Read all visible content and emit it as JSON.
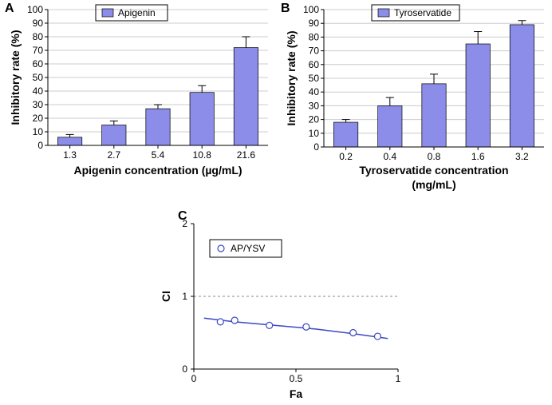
{
  "panelA": {
    "label": "A",
    "type": "bar",
    "legend_label": "Apigenin",
    "x_label": "Apigenin concentration (µg/mL)",
    "y_label": "Inhibitory rate (%)",
    "categories": [
      "1.3",
      "2.7",
      "5.4",
      "10.8",
      "21.6"
    ],
    "values": [
      6,
      15,
      27,
      39,
      72
    ],
    "errors": [
      2,
      3,
      3,
      5,
      8
    ],
    "bar_color": "#8b8de8",
    "bar_width": 0.55,
    "ylim": [
      0,
      100
    ],
    "ytick_step": 10,
    "grid_color": "#cccccc",
    "background_color": "#ffffff",
    "title_fontsize": 14,
    "label_fontsize": 13
  },
  "panelB": {
    "label": "B",
    "type": "bar",
    "legend_label": "Tyroservatide",
    "x_label": "Tyroservatide concentration (mg/mL)",
    "y_label": "Inhibitory rate (%)",
    "categories": [
      "0.2",
      "0.4",
      "0.8",
      "1.6",
      "3.2"
    ],
    "values": [
      18,
      30,
      46,
      75,
      89
    ],
    "errors": [
      2,
      6,
      7,
      9,
      3
    ],
    "bar_color": "#8b8de8",
    "bar_width": 0.55,
    "ylim": [
      0,
      100
    ],
    "ytick_step": 10,
    "grid_color": "#cccccc",
    "background_color": "#ffffff",
    "title_fontsize": 14,
    "label_fontsize": 13
  },
  "panelC": {
    "label": "C",
    "type": "scatter_line",
    "legend_label": "AP/YSV",
    "x_label": "Fa",
    "y_label": "CI",
    "xlim": [
      0,
      1
    ],
    "ylim": [
      0,
      2
    ],
    "xtick_step": 0.5,
    "ytick_step": 1,
    "points_x": [
      0.13,
      0.2,
      0.37,
      0.55,
      0.78,
      0.9
    ],
    "points_y": [
      0.65,
      0.67,
      0.6,
      0.58,
      0.5,
      0.45
    ],
    "curve_x": [
      0.05,
      0.2,
      0.4,
      0.6,
      0.8,
      0.95
    ],
    "curve_y": [
      0.7,
      0.65,
      0.6,
      0.55,
      0.48,
      0.42
    ],
    "line_color": "#3b49c4",
    "marker_edge": "#3b49c4",
    "marker_fill": "#ffffff",
    "marker_radius": 4,
    "dash_y": 1,
    "background_color": "#ffffff",
    "label_fontsize": 14
  }
}
